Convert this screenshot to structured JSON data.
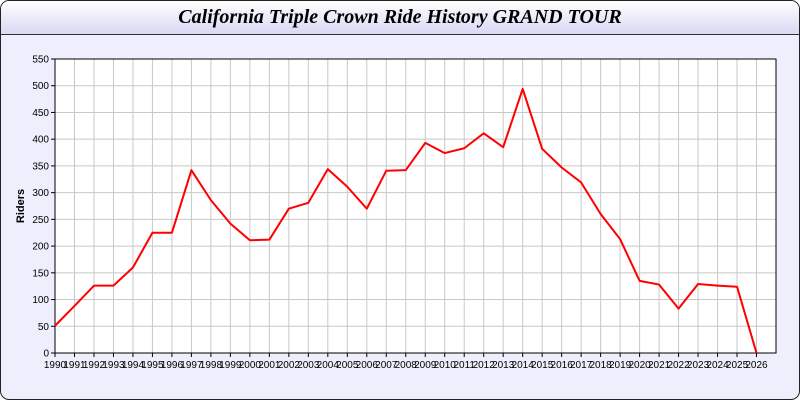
{
  "chart_data": {
    "type": "line",
    "title": "California Triple Crown Ride History GRAND TOUR",
    "xlabel": "",
    "ylabel": "Riders",
    "x": [
      1990,
      1991,
      1992,
      1993,
      1994,
      1995,
      1996,
      1997,
      1998,
      1999,
      2000,
      2001,
      2002,
      2003,
      2004,
      2005,
      2006,
      2007,
      2008,
      2009,
      2010,
      2011,
      2012,
      2013,
      2014,
      2015,
      2016,
      2017,
      2018,
      2019,
      2020,
      2021,
      2022,
      2023,
      2024,
      2025,
      2026
    ],
    "series": [
      {
        "values": [
          51,
          88,
          126,
          126,
          160,
          225,
          225,
          342,
          286,
          242,
          211,
          212,
          270,
          281,
          344,
          311,
          270,
          341,
          342,
          393,
          374,
          383,
          411,
          385,
          494,
          382,
          347,
          319,
          260,
          213,
          135,
          128,
          83,
          129,
          126,
          124,
          0
        ],
        "color": "#ff0000"
      }
    ],
    "xlim": [
      1990,
      2027
    ],
    "ylim": [
      0,
      550
    ],
    "yticks": [
      0,
      50,
      100,
      150,
      200,
      250,
      300,
      350,
      400,
      450,
      500,
      550
    ],
    "grid": true,
    "legend": "none"
  }
}
